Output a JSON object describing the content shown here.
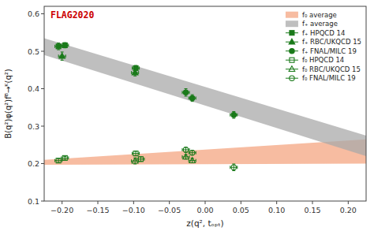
{
  "chart_data": {
    "type": "scatter",
    "title": "FLAG2020",
    "xlabel": "z(q², tₒₚₜ)",
    "ylabel": "B(q²)φ(q²)fᴮ→ᴷ(q²)",
    "xlim": [
      -0.225,
      0.225
    ],
    "ylim": [
      0.1,
      0.62
    ],
    "xticks": [
      {
        "value": -0.2,
        "label": "−0.20"
      },
      {
        "value": -0.15,
        "label": "−0.15"
      },
      {
        "value": -0.1,
        "label": "−0.10"
      },
      {
        "value": -0.05,
        "label": "−0.05"
      },
      {
        "value": 0.0,
        "label": "0.00"
      },
      {
        "value": 0.05,
        "label": "0.05"
      },
      {
        "value": 0.1,
        "label": "0.10"
      },
      {
        "value": 0.15,
        "label": "0.15"
      },
      {
        "value": 0.2,
        "label": "0.20"
      }
    ],
    "yticks": [
      0.1,
      0.2,
      0.3,
      0.4,
      0.5,
      0.6
    ],
    "grid": false,
    "legend": "upper right",
    "series": [
      {
        "name": "f₀ average",
        "type": "area",
        "color": "#f4a582",
        "x": [
          -0.225,
          0.225
        ],
        "low": [
          0.197,
          0.2
        ],
        "high": [
          0.21,
          0.265
        ]
      },
      {
        "name": "f₊ average",
        "type": "area",
        "color": "#aaaaaa",
        "x": [
          -0.225,
          0.225
        ],
        "low": [
          0.49,
          0.22
        ],
        "high": [
          0.535,
          0.275
        ]
      },
      {
        "name": "f₊ HPQCD 14",
        "type": "scatter",
        "color": "#1a7a1a",
        "marker": "square",
        "x": [
          -0.205,
          -0.196,
          -0.097
        ],
        "values": [
          0.513,
          0.516,
          0.455
        ],
        "xerr": [
          0.005,
          0.005,
          0.005
        ],
        "yerr": [
          0.009,
          0.007,
          0.007
        ]
      },
      {
        "name": "f₊ RBC/UKQCD 15",
        "type": "scatter",
        "color": "#1a7a1a",
        "marker": "triangle",
        "x": [
          -0.2,
          -0.098
        ],
        "values": [
          0.487,
          0.443
        ],
        "xerr": [
          0.005,
          0.005
        ],
        "yerr": [
          0.011,
          0.009
        ]
      },
      {
        "name": "f₊ FNAL/MILC 19",
        "type": "scatter",
        "color": "#1a7a1a",
        "marker": "circle",
        "x": [
          -0.027,
          -0.018,
          0.04
        ],
        "values": [
          0.39,
          0.375,
          0.33
        ],
        "xerr": [
          0.005,
          0.005,
          0.005
        ],
        "yerr": [
          0.01,
          0.009,
          0.009
        ]
      },
      {
        "name": "f₀ HPQCD 14",
        "type": "scatter",
        "color": "#1a7a1a",
        "marker": "square-open",
        "x": [
          -0.205,
          -0.196,
          -0.097,
          -0.09
        ],
        "values": [
          0.208,
          0.215,
          0.227,
          0.212
        ],
        "xerr": [
          0.005,
          0.005,
          0.005,
          0.005
        ],
        "yerr": [
          0.005,
          0.004,
          0.006,
          0.006
        ]
      },
      {
        "name": "f₀ RBC/UKQCD 15",
        "type": "scatter",
        "color": "#1a7a1a",
        "marker": "triangle-open",
        "x": [
          -0.098,
          -0.027,
          -0.018
        ],
        "values": [
          0.207,
          0.218,
          0.208
        ],
        "xerr": [
          0.005,
          0.005,
          0.005
        ],
        "yerr": [
          0.008,
          0.006,
          0.006
        ]
      },
      {
        "name": "f₀ FNAL/MILC 19",
        "type": "scatter",
        "color": "#1a7a1a",
        "marker": "circle-open",
        "x": [
          -0.027,
          -0.018,
          0.04
        ],
        "values": [
          0.237,
          0.229,
          0.19
        ],
        "xerr": [
          0.005,
          0.005,
          0.005
        ],
        "yerr": [
          0.007,
          0.006,
          0.009
        ]
      }
    ]
  }
}
